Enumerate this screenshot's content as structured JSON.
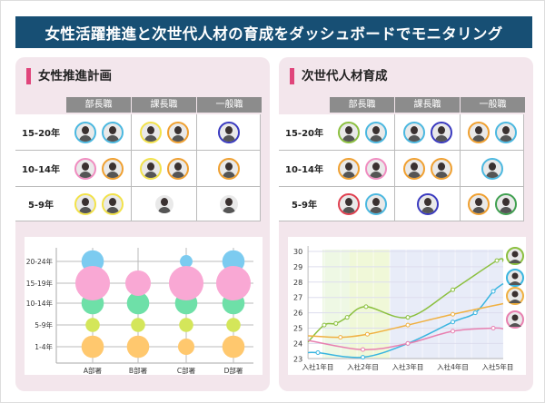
{
  "title": "女性活躍推進と次世代人材の育成をダッシュボードでモニタリング",
  "left": {
    "title": "女性推進計画",
    "columns": [
      "部長職",
      "課長職",
      "一般職"
    ],
    "rows": [
      {
        "label": "15-20年",
        "cells": [
          [
            "#4bb8e0",
            "#4bb8e0"
          ],
          [
            "#f2e24a",
            "#f0a030"
          ],
          [
            "#3a3ac0"
          ]
        ]
      },
      {
        "label": "10-14年",
        "cells": [
          [
            "#f08cc0",
            "#f0a030"
          ],
          [
            "#f2e24a",
            "#f0a030"
          ],
          [
            "#f0a030"
          ]
        ]
      },
      {
        "label": "5-9年",
        "cells": [
          [
            "#f2e24a",
            "#f2e24a"
          ],
          [
            "#ffffff"
          ],
          [
            "#ffffff"
          ]
        ]
      }
    ]
  },
  "right": {
    "title": "次世代人材育成",
    "columns": [
      "部長職",
      "課長職",
      "一般職"
    ],
    "rows": [
      {
        "label": "15-20年",
        "cells": [
          [
            "#8cc040",
            "#4bb8e0"
          ],
          [
            "#4bb8e0",
            "#3a3ac0"
          ],
          [
            "#f0a030",
            "#4bb8e0"
          ]
        ]
      },
      {
        "label": "10-14年",
        "cells": [
          [
            "#f0a030",
            "#f08cc0"
          ],
          [
            "#f0a030",
            "#f0a030"
          ],
          [
            "#4bb8e0"
          ]
        ]
      },
      {
        "label": "5-9年",
        "cells": [
          [
            "#e04050",
            "#4bb8e0"
          ],
          [
            "#3a3ac0"
          ],
          [
            "#f0a030",
            "#40a050"
          ]
        ]
      }
    ]
  },
  "chart_data": [
    {
      "type": "scatter",
      "subtype": "bubble",
      "categories": [
        "A部署",
        "B部署",
        "C部署",
        "D部署"
      ],
      "y_categories": [
        "1-4年",
        "5-9年",
        "10-14年",
        "15-19年",
        "20-24年"
      ],
      "colors": {
        "20-24年": "#7ccbf0",
        "15-19年": "#f9a8d4",
        "10-14年": "#6ee0a8",
        "5-9年": "#d4e65a",
        "1-4年": "#ffc86e"
      },
      "series": [
        {
          "name": "20-24年",
          "values": [
            5,
            0,
            1.6,
            5
          ]
        },
        {
          "name": "15-19年",
          "values": [
            12,
            6.5,
            12,
            12
          ]
        },
        {
          "name": "10-14年",
          "values": [
            5,
            5,
            5,
            5
          ]
        },
        {
          "name": "5-9年",
          "values": [
            2,
            2,
            2,
            2
          ]
        },
        {
          "name": "1-4年",
          "values": [
            5,
            5,
            2.7,
            5
          ]
        }
      ],
      "grid": true
    },
    {
      "type": "line",
      "x_labels": [
        "入社1年目",
        "入社2年目",
        "入社3年目",
        "入社4年目",
        "入社5年目"
      ],
      "ylim": [
        23,
        30
      ],
      "yticks": [
        23,
        24,
        25,
        26,
        27,
        28,
        29,
        30
      ],
      "series": [
        {
          "name": "green",
          "color": "#8cc040",
          "points": [
            [
              0.78,
              24.1
            ],
            [
              1.14,
              25.2
            ],
            [
              1.4,
              25.3
            ],
            [
              1.65,
              25.7
            ],
            [
              2.07,
              26.4
            ],
            [
              3.0,
              25.7
            ],
            [
              4.0,
              27.5
            ],
            [
              4.98,
              29.4
            ],
            [
              5.12,
              29.35
            ]
          ]
        },
        {
          "name": "blue",
          "color": "#3ab5e0",
          "points": [
            [
              0.78,
              23.4
            ],
            [
              1.0,
              23.4
            ],
            [
              2.0,
              23.1
            ],
            [
              3.0,
              24.0
            ],
            [
              4.0,
              25.4
            ],
            [
              4.5,
              26.0
            ],
            [
              4.9,
              27.4
            ],
            [
              5.12,
              27.9
            ]
          ]
        },
        {
          "name": "orange",
          "color": "#f0b040",
          "points": [
            [
              0.78,
              24.5
            ],
            [
              1.5,
              24.4
            ],
            [
              2.1,
              24.6
            ],
            [
              3.0,
              25.2
            ],
            [
              4.0,
              25.9
            ],
            [
              5.12,
              26.6
            ]
          ]
        },
        {
          "name": "pink",
          "color": "#e880b0",
          "points": [
            [
              0.78,
              24.2
            ],
            [
              2.0,
              23.6
            ],
            [
              3.0,
              24.0
            ],
            [
              4.0,
              24.8
            ],
            [
              4.9,
              25.0
            ],
            [
              5.12,
              24.95
            ]
          ]
        }
      ]
    }
  ]
}
